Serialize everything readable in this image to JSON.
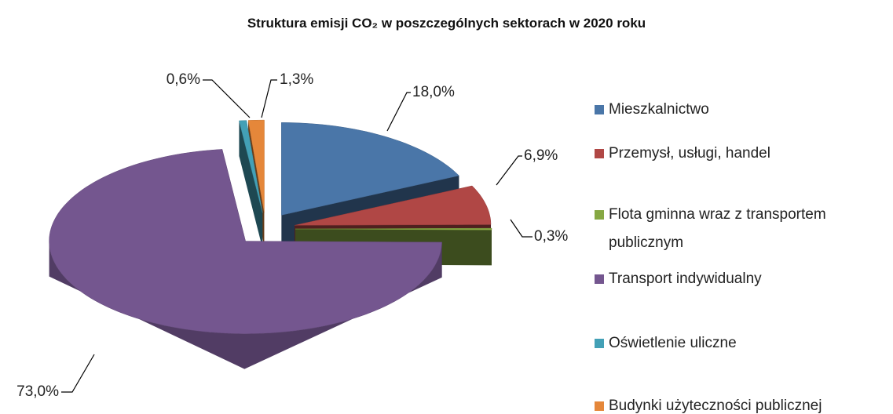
{
  "chart_data": {
    "type": "pie3d",
    "title": "Struktura emisji CO₂ w poszczególnych sektorach w 2020 roku",
    "categories": [
      "Mieszkalnictwo",
      "Przemysł, usługi, handel",
      "Flota gminna wraz z transportem publicznym",
      "Transport indywidualny",
      "Oświetlenie uliczne",
      "Budynki użyteczności publicznej"
    ],
    "values": [
      18.0,
      6.9,
      0.3,
      73.0,
      0.6,
      1.3
    ],
    "value_labels": [
      "18,0%",
      "6,9%",
      "0,3%",
      "73,0%",
      "0,6%",
      "1,3%"
    ],
    "colors": [
      "#4a76a8",
      "#b04745",
      "#86a843",
      "#74568f",
      "#43a0b6",
      "#e5873a"
    ],
    "legend": "right"
  }
}
